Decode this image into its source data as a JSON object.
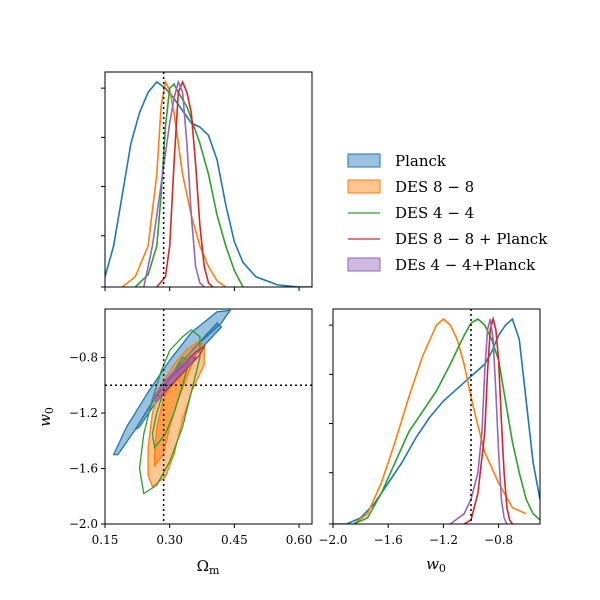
{
  "chart_data": {
    "type": "corner",
    "colors": {
      "planck": "#1f77b4",
      "des88": "#ff7f0e",
      "des44": "#2ca02c",
      "des88_planck": "#d62728",
      "des44_planck": "#9467bd"
    },
    "legend": {
      "placement": "right",
      "entries": [
        {
          "key": "planck",
          "label": "Planck",
          "style": "fill"
        },
        {
          "key": "des88",
          "label": "DES 8 − 8",
          "style": "fill"
        },
        {
          "key": "des44",
          "label": "DES 4 − 4",
          "style": "line"
        },
        {
          "key": "des88_planck",
          "label": "DES 8 − 8 + Planck",
          "style": "line"
        },
        {
          "key": "des44_planck",
          "label": "DEs 4 − 4+Planck",
          "style": "fill"
        }
      ]
    },
    "reference": {
      "omega_m": 0.286,
      "w0": -1.0
    },
    "x_omega": {
      "label": "Ω",
      "label_sub": "m",
      "range": [
        0.15,
        0.63
      ],
      "ticks": [
        0.15,
        0.3,
        0.45,
        0.6
      ],
      "tick_labels": [
        "0.15",
        "0.30",
        "0.45",
        "0.60"
      ]
    },
    "x_w0": {
      "label": "w",
      "label_sub": "0",
      "range": [
        -2.0,
        -0.5
      ],
      "ticks": [
        -2.0,
        -1.6,
        -1.2,
        -0.8
      ],
      "tick_labels": [
        "−2.0",
        "−1.6",
        "−1.2",
        "−0.8"
      ]
    },
    "y_w0": {
      "label": "w",
      "label_sub": "0",
      "range": [
        -2.0,
        -0.45
      ],
      "ticks": [
        -2.0,
        -1.6,
        -1.2,
        -0.8
      ],
      "tick_labels": [
        "−2.0",
        "−1.6",
        "−1.2",
        "−0.8"
      ]
    },
    "omega_pdfs": [
      {
        "key": "planck",
        "x": [
          0.15,
          0.17,
          0.19,
          0.21,
          0.23,
          0.25,
          0.27,
          0.29,
          0.31,
          0.33,
          0.35,
          0.37,
          0.39,
          0.41,
          0.43,
          0.45,
          0.47,
          0.5,
          0.55,
          0.6,
          0.63
        ],
        "y": [
          0.05,
          0.2,
          0.45,
          0.7,
          0.85,
          0.95,
          1.0,
          0.97,
          0.92,
          0.86,
          0.8,
          0.78,
          0.74,
          0.62,
          0.4,
          0.22,
          0.12,
          0.05,
          0.01,
          0.0,
          0.0
        ]
      },
      {
        "key": "des88",
        "x": [
          0.19,
          0.22,
          0.25,
          0.27,
          0.28,
          0.29,
          0.3,
          0.31,
          0.32,
          0.33,
          0.35,
          0.37,
          0.39,
          0.41,
          0.43
        ],
        "y": [
          0.0,
          0.05,
          0.2,
          0.55,
          0.88,
          1.0,
          0.96,
          0.85,
          0.7,
          0.55,
          0.35,
          0.2,
          0.1,
          0.03,
          0.0
        ]
      },
      {
        "key": "des44",
        "x": [
          0.22,
          0.25,
          0.27,
          0.28,
          0.29,
          0.3,
          0.31,
          0.32,
          0.34,
          0.35,
          0.37,
          0.39,
          0.41,
          0.43,
          0.45,
          0.47
        ],
        "y": [
          0.0,
          0.06,
          0.2,
          0.45,
          0.78,
          0.97,
          0.99,
          0.95,
          0.88,
          0.82,
          0.7,
          0.55,
          0.35,
          0.2,
          0.08,
          0.0
        ]
      },
      {
        "key": "des88_planck",
        "x": [
          0.27,
          0.29,
          0.3,
          0.31,
          0.32,
          0.33,
          0.34,
          0.35,
          0.36,
          0.37,
          0.38,
          0.39,
          0.4
        ],
        "y": [
          0.0,
          0.05,
          0.2,
          0.6,
          0.95,
          1.0,
          0.95,
          0.85,
          0.6,
          0.3,
          0.1,
          0.02,
          0.0
        ]
      },
      {
        "key": "des44_planck",
        "x": [
          0.24,
          0.26,
          0.27,
          0.28,
          0.29,
          0.3,
          0.31,
          0.32,
          0.33,
          0.34,
          0.35,
          0.36,
          0.37,
          0.38
        ],
        "y": [
          0.0,
          0.2,
          0.35,
          0.5,
          0.65,
          0.8,
          0.92,
          1.0,
          0.95,
          0.7,
          0.35,
          0.1,
          0.02,
          0.0
        ]
      }
    ],
    "w0_pdfs": [
      {
        "key": "planck",
        "x": [
          -2.0,
          -1.9,
          -1.8,
          -1.7,
          -1.6,
          -1.5,
          -1.4,
          -1.3,
          -1.2,
          -1.1,
          -1.0,
          -0.9,
          -0.85,
          -0.8,
          -0.75,
          -0.7,
          -0.65,
          -0.6,
          -0.55,
          -0.5
        ],
        "y": [
          0.0,
          0.0,
          0.03,
          0.1,
          0.2,
          0.3,
          0.42,
          0.52,
          0.6,
          0.66,
          0.72,
          0.78,
          0.84,
          0.92,
          0.97,
          1.0,
          0.9,
          0.6,
          0.3,
          0.12
        ]
      },
      {
        "key": "des88",
        "x": [
          -1.85,
          -1.75,
          -1.65,
          -1.55,
          -1.45,
          -1.35,
          -1.25,
          -1.2,
          -1.15,
          -1.1,
          -1.05,
          -1.0,
          -0.95,
          -0.9,
          -0.8,
          -0.7,
          -0.6
        ],
        "y": [
          0.0,
          0.05,
          0.2,
          0.4,
          0.62,
          0.82,
          0.97,
          1.0,
          0.97,
          0.9,
          0.78,
          0.62,
          0.48,
          0.35,
          0.2,
          0.08,
          0.05
        ]
      },
      {
        "key": "des44",
        "x": [
          -1.85,
          -1.75,
          -1.65,
          -1.55,
          -1.45,
          -1.35,
          -1.25,
          -1.15,
          -1.05,
          -1.0,
          -0.95,
          -0.9,
          -0.85,
          -0.8,
          -0.75,
          -0.7,
          -0.65,
          -0.6,
          -0.55,
          -0.5
        ],
        "y": [
          0.0,
          0.03,
          0.15,
          0.3,
          0.45,
          0.55,
          0.65,
          0.78,
          0.92,
          0.98,
          1.0,
          0.97,
          0.9,
          0.8,
          0.6,
          0.4,
          0.25,
          0.12,
          0.05,
          0.02
        ]
      },
      {
        "key": "des88_planck",
        "x": [
          -1.05,
          -1.0,
          -0.95,
          -0.9,
          -0.88,
          -0.86,
          -0.84,
          -0.82,
          -0.8,
          -0.78,
          -0.76,
          -0.74,
          -0.72,
          -0.7
        ],
        "y": [
          0.0,
          0.02,
          0.15,
          0.45,
          0.75,
          0.95,
          1.0,
          0.95,
          0.8,
          0.5,
          0.25,
          0.08,
          0.02,
          0.0
        ]
      },
      {
        "key": "des44_planck",
        "x": [
          -1.15,
          -1.05,
          -1.0,
          -0.95,
          -0.92,
          -0.9,
          -0.88,
          -0.86,
          -0.84,
          -0.82,
          -0.8,
          -0.78,
          -0.76,
          -0.74
        ],
        "y": [
          0.0,
          0.05,
          0.12,
          0.25,
          0.45,
          0.75,
          0.95,
          1.0,
          0.9,
          0.65,
          0.35,
          0.12,
          0.03,
          0.0
        ]
      }
    ],
    "contours": [
      {
        "key": "planck",
        "filled": true,
        "outer": [
          [
            0.17,
            -1.5
          ],
          [
            0.2,
            -1.3
          ],
          [
            0.25,
            -1.05
          ],
          [
            0.3,
            -0.82
          ],
          [
            0.35,
            -0.62
          ],
          [
            0.41,
            -0.47
          ],
          [
            0.44,
            -0.46
          ],
          [
            0.42,
            -0.55
          ],
          [
            0.36,
            -0.72
          ],
          [
            0.31,
            -0.9
          ],
          [
            0.26,
            -1.12
          ],
          [
            0.22,
            -1.32
          ],
          [
            0.18,
            -1.5
          ]
        ],
        "inner": [
          [
            0.22,
            -1.32
          ],
          [
            0.26,
            -1.12
          ],
          [
            0.31,
            -0.9
          ],
          [
            0.36,
            -0.72
          ],
          [
            0.41,
            -0.55
          ],
          [
            0.42,
            -0.58
          ],
          [
            0.36,
            -0.78
          ],
          [
            0.31,
            -0.96
          ],
          [
            0.26,
            -1.16
          ],
          [
            0.23,
            -1.3
          ]
        ]
      },
      {
        "key": "des88",
        "filled": true,
        "outer": [
          [
            0.26,
            -1.73
          ],
          [
            0.29,
            -1.66
          ],
          [
            0.31,
            -1.5
          ],
          [
            0.33,
            -1.25
          ],
          [
            0.35,
            -1.05
          ],
          [
            0.38,
            -0.85
          ],
          [
            0.38,
            -0.72
          ],
          [
            0.37,
            -0.68
          ],
          [
            0.34,
            -0.74
          ],
          [
            0.31,
            -0.85
          ],
          [
            0.28,
            -1.0
          ],
          [
            0.26,
            -1.2
          ],
          [
            0.25,
            -1.45
          ],
          [
            0.25,
            -1.65
          ]
        ],
        "inner": [
          [
            0.265,
            -1.58
          ],
          [
            0.285,
            -1.5
          ],
          [
            0.3,
            -1.3
          ],
          [
            0.32,
            -1.1
          ],
          [
            0.345,
            -0.9
          ],
          [
            0.36,
            -0.78
          ],
          [
            0.34,
            -0.8
          ],
          [
            0.31,
            -0.95
          ],
          [
            0.285,
            -1.1
          ],
          [
            0.27,
            -1.3
          ],
          [
            0.265,
            -1.5
          ]
        ]
      },
      {
        "key": "des44",
        "filled": false,
        "outer": [
          [
            0.24,
            -1.78
          ],
          [
            0.27,
            -1.72
          ],
          [
            0.3,
            -1.55
          ],
          [
            0.33,
            -1.3
          ],
          [
            0.35,
            -1.05
          ],
          [
            0.37,
            -0.8
          ],
          [
            0.37,
            -0.65
          ],
          [
            0.35,
            -0.6
          ],
          [
            0.33,
            -0.65
          ],
          [
            0.3,
            -0.75
          ],
          [
            0.28,
            -0.9
          ],
          [
            0.26,
            -1.1
          ],
          [
            0.24,
            -1.35
          ],
          [
            0.23,
            -1.6
          ]
        ],
        "inner": [
          [
            0.265,
            -1.45
          ],
          [
            0.29,
            -1.35
          ],
          [
            0.31,
            -1.2
          ],
          [
            0.33,
            -1.0
          ],
          [
            0.345,
            -0.82
          ],
          [
            0.33,
            -0.8
          ],
          [
            0.31,
            -0.9
          ],
          [
            0.285,
            -1.05
          ],
          [
            0.27,
            -1.2
          ],
          [
            0.26,
            -1.35
          ]
        ]
      },
      {
        "key": "des88_planck",
        "filled": false,
        "outer": [
          [
            0.27,
            -1.07
          ],
          [
            0.3,
            -0.95
          ],
          [
            0.33,
            -0.85
          ],
          [
            0.36,
            -0.76
          ],
          [
            0.38,
            -0.72
          ],
          [
            0.37,
            -0.78
          ],
          [
            0.34,
            -0.88
          ],
          [
            0.31,
            -0.98
          ],
          [
            0.28,
            -1.08
          ]
        ],
        "inner": [
          [
            0.29,
            -1.0
          ],
          [
            0.32,
            -0.9
          ],
          [
            0.35,
            -0.8
          ],
          [
            0.36,
            -0.8
          ],
          [
            0.33,
            -0.9
          ],
          [
            0.3,
            -1.0
          ]
        ]
      },
      {
        "key": "des44_planck",
        "filled": true,
        "outer": [
          [
            0.26,
            -1.1
          ],
          [
            0.28,
            -1.0
          ],
          [
            0.31,
            -0.9
          ],
          [
            0.34,
            -0.82
          ],
          [
            0.36,
            -0.78
          ],
          [
            0.35,
            -0.84
          ],
          [
            0.32,
            -0.93
          ],
          [
            0.29,
            -1.03
          ],
          [
            0.27,
            -1.12
          ]
        ],
        "inner": [
          [
            0.28,
            -1.03
          ],
          [
            0.31,
            -0.93
          ],
          [
            0.34,
            -0.85
          ],
          [
            0.33,
            -0.88
          ],
          [
            0.3,
            -0.97
          ],
          [
            0.285,
            -1.02
          ]
        ]
      }
    ]
  }
}
